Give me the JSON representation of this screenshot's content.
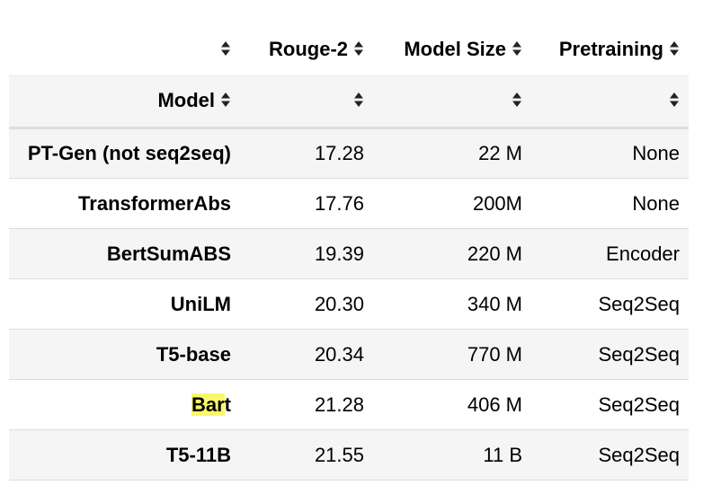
{
  "table": {
    "columns": [
      {
        "label": ""
      },
      {
        "label": "Rouge-2"
      },
      {
        "label": "Model Size"
      },
      {
        "label": "Pretraining"
      }
    ],
    "index_name": "Model",
    "rows": [
      {
        "model": "PT-Gen (not seq2seq)",
        "rouge2": "17.28",
        "size": "22 M",
        "pretraining": "None"
      },
      {
        "model": "TransformerAbs",
        "rouge2": "17.76",
        "size": "200M",
        "pretraining": "None"
      },
      {
        "model": "BertSumABS",
        "rouge2": "19.39",
        "size": "220 M",
        "pretraining": "Encoder"
      },
      {
        "model": "UniLM",
        "rouge2": "20.30",
        "size": "340 M",
        "pretraining": "Seq2Seq"
      },
      {
        "model": "T5-base",
        "rouge2": "20.34",
        "size": "770 M",
        "pretraining": "Seq2Seq"
      },
      {
        "model": "Bart",
        "rouge2": "21.28",
        "size": "406 M",
        "pretraining": "Seq2Seq",
        "highlight": "Bar"
      },
      {
        "model": "T5-11B",
        "rouge2": "21.55",
        "size": "11 B",
        "pretraining": "Seq2Seq"
      }
    ]
  },
  "colors": {
    "row_stripe": "#f5f5f5",
    "highlight": "#fbf76a",
    "border": "#dcdcdc"
  },
  "icons": {
    "sort": "sort-up-down-icon"
  }
}
